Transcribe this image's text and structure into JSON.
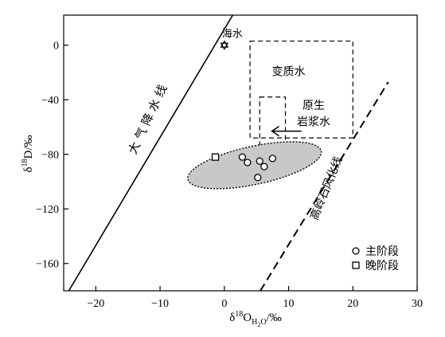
{
  "chart_data": {
    "type": "scatter",
    "xlabel": {
      "prefix": "δ",
      "sup": "18",
      "main": "O",
      "sub1": "H",
      "subsub": "2",
      "sub2": "O",
      "unit": "/‰"
    },
    "ylabel": {
      "prefix": "δ",
      "sup": "18",
      "main": "D",
      "unit": "/‰"
    },
    "xlim": [
      -25,
      30
    ],
    "ylim": [
      -180,
      22
    ],
    "x_ticks": [
      -20,
      -10,
      0,
      10,
      20,
      30
    ],
    "y_ticks": [
      0,
      -40,
      -80,
      -120,
      -160
    ],
    "x_tick_labels": [
      "−20",
      "−10",
      "0",
      "10",
      "20",
      "30"
    ],
    "y_tick_labels": [
      "0",
      "−40",
      "−80",
      "−120",
      "−160"
    ],
    "grid": false,
    "series": [
      {
        "name": "主阶段",
        "marker": "circle",
        "points": [
          [
            2.8,
            -82
          ],
          [
            3.6,
            -86
          ],
          [
            5.5,
            -85
          ],
          [
            7.5,
            -83
          ],
          [
            6.2,
            -89
          ],
          [
            5.2,
            -97
          ]
        ]
      },
      {
        "name": "晚阶段",
        "marker": "square",
        "points": [
          [
            -1.4,
            -82
          ]
        ]
      }
    ],
    "lines": [
      {
        "label": "大 气 降 水 线",
        "style": "solid",
        "from": [
          -24.2,
          -180
        ],
        "to": [
          1.3,
          22
        ]
      },
      {
        "label": "高岭石风化线",
        "style": "dashed",
        "from": [
          5.6,
          -180
        ],
        "to": [
          25.5,
          -27
        ]
      }
    ],
    "regions": [
      {
        "label": "变质水",
        "style": "dashed-rect",
        "x": [
          4,
          20
        ],
        "y": [
          -68,
          3
        ]
      },
      {
        "label_lines": [
          "原生",
          "岩浆水"
        ],
        "style": "dashed-rect",
        "x": [
          5.5,
          9.5
        ],
        "y": [
          -78,
          -38
        ]
      },
      {
        "label": "",
        "style": "shaded-ellipse",
        "center": [
          4.7,
          -88
        ],
        "rx": 10.6,
        "ry": 14
      }
    ],
    "annotations": [
      {
        "label": "海水",
        "marker": "hexagram",
        "x": 0,
        "y": 0
      }
    ],
    "legend": {
      "placement": "bottom-right",
      "entries": [
        {
          "marker": "circle",
          "label": "主阶段"
        },
        {
          "marker": "square",
          "label": "晚阶段"
        }
      ]
    }
  }
}
